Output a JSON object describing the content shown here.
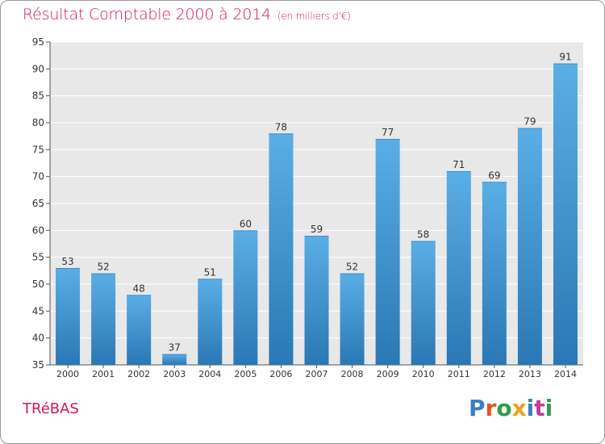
{
  "header": {
    "title": "Résultat Comptable 2000 à 2014",
    "unit": "(en milliers d'€)"
  },
  "footer": {
    "commune": "TRéBAS",
    "logo_text": "Proxiti",
    "logo_colors": [
      "#3a7fc1",
      "#e8501c",
      "#2f9e44",
      "#e8a31c",
      "#3a7fc1",
      "#c23a9a",
      "#2f9e44"
    ]
  },
  "colors": {
    "title": "#d0185a",
    "bar_top": "#5aaee6",
    "bar_bottom": "#2a78b5",
    "plot_bg": "#e8e8e8",
    "grid": "#ffffff"
  },
  "chart_data": {
    "type": "bar",
    "title": "Résultat Comptable 2000 à 2014",
    "ylabel": "(en milliers d'€)",
    "categories": [
      "2000",
      "2001",
      "2002",
      "2003",
      "2004",
      "2005",
      "2006",
      "2007",
      "2008",
      "2009",
      "2010",
      "2011",
      "2012",
      "2013",
      "2014"
    ],
    "values": [
      53,
      52,
      48,
      37,
      51,
      60,
      78,
      59,
      52,
      77,
      58,
      71,
      69,
      79,
      91
    ],
    "ylim": [
      35,
      95
    ],
    "yticks": [
      35,
      40,
      45,
      50,
      55,
      60,
      65,
      70,
      75,
      80,
      85,
      90,
      95
    ],
    "grid": true,
    "legend": "none"
  }
}
